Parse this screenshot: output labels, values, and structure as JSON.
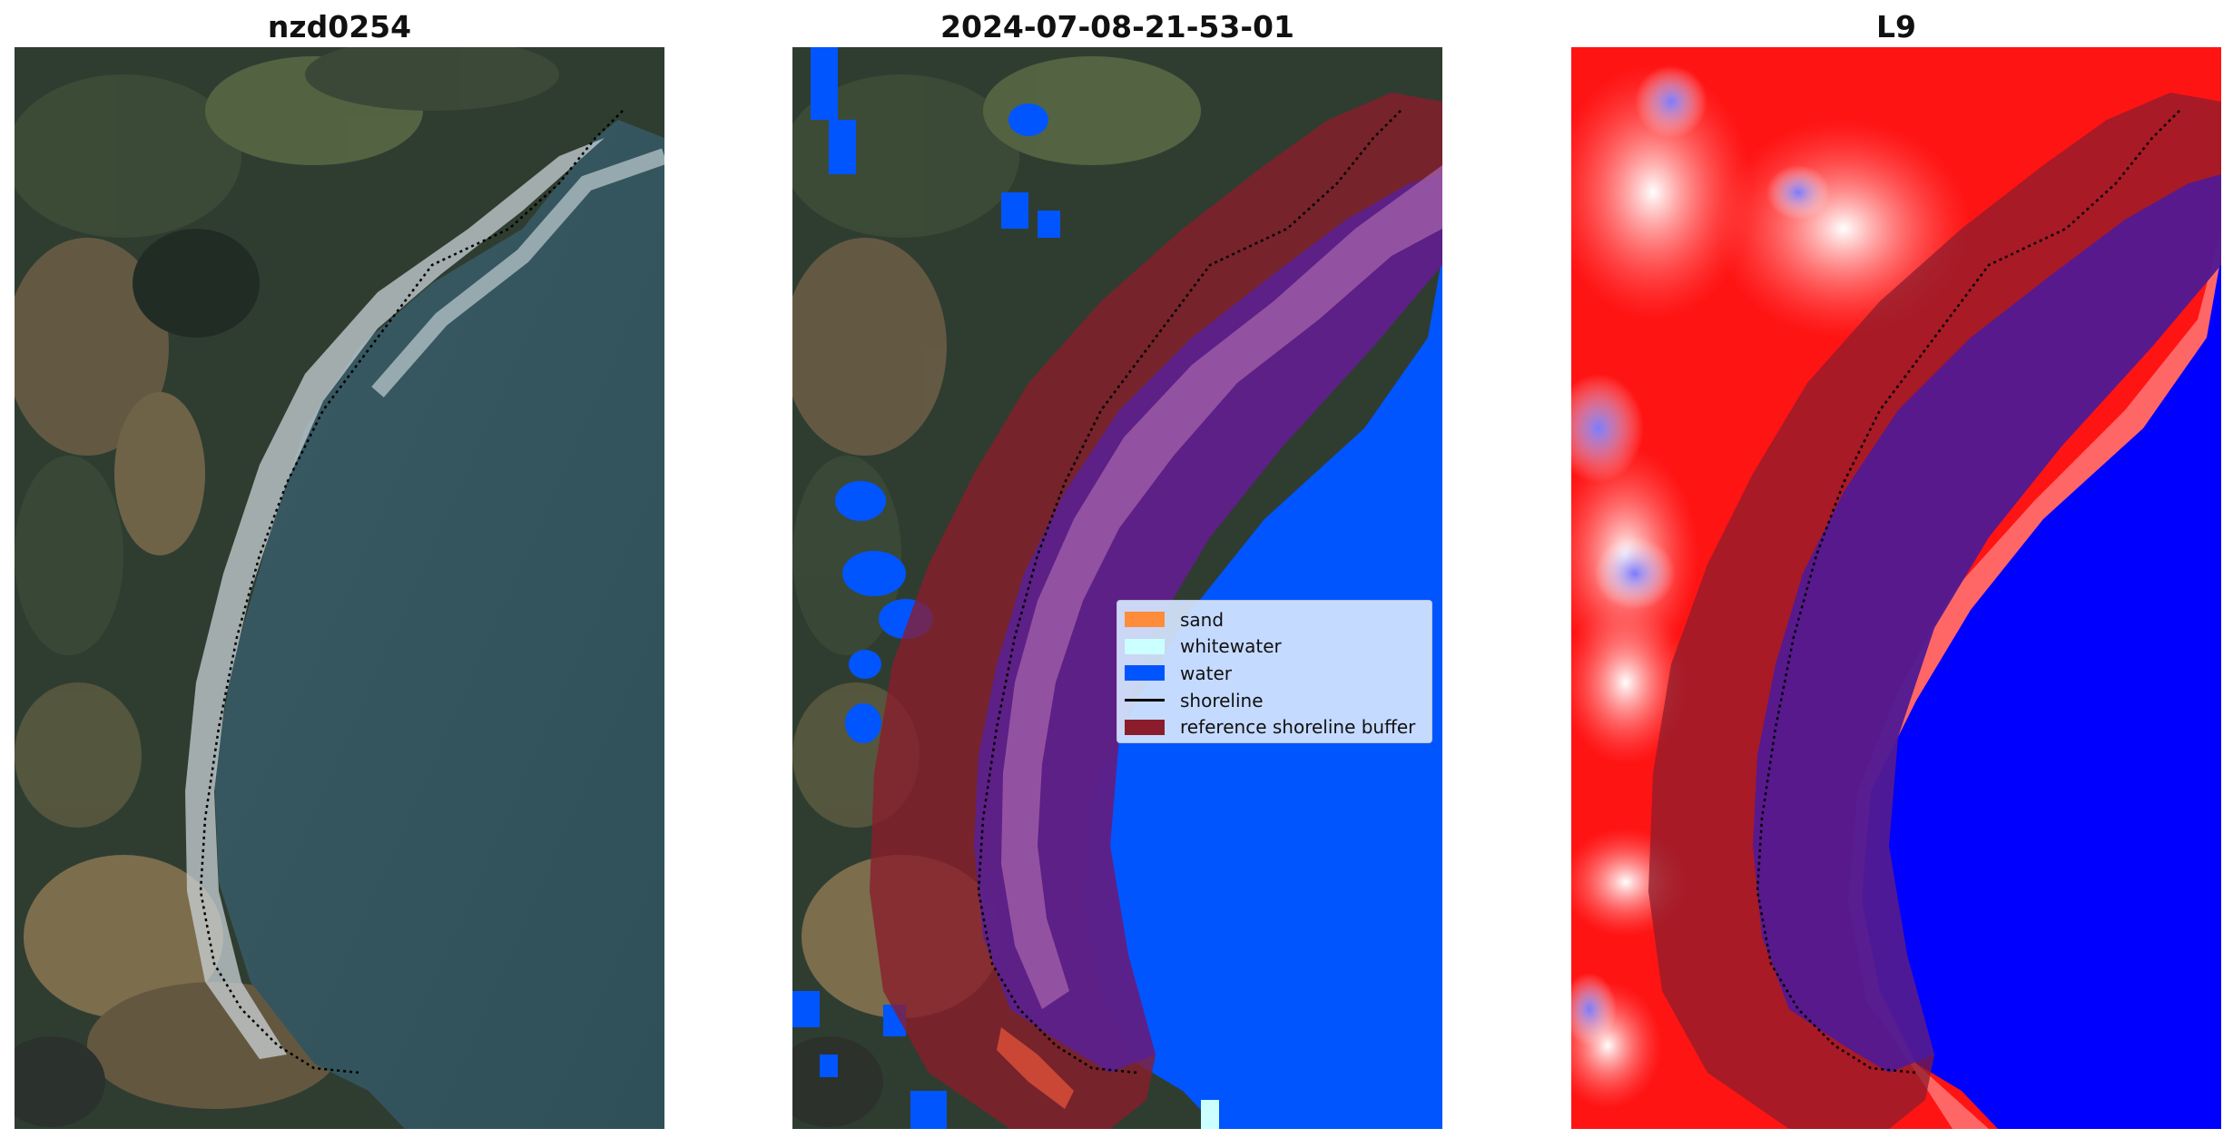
{
  "panels": [
    {
      "title": "nzd0254"
    },
    {
      "title": "2024-07-08-21-53-01"
    },
    {
      "title": "L9"
    }
  ],
  "legend": {
    "items": [
      {
        "label": "sand",
        "color": "#ff8c3a",
        "kind": "patch"
      },
      {
        "label": "whitewater",
        "color": "#ccffff",
        "kind": "patch"
      },
      {
        "label": "water",
        "color": "#0055ff",
        "kind": "patch"
      },
      {
        "label": "shoreline",
        "color": "#000000",
        "kind": "line"
      },
      {
        "label": "reference shoreline buffer",
        "color": "#8b1c2c",
        "kind": "patch"
      }
    ]
  },
  "colors": {
    "land_dark": "#2b3a2c",
    "land_brown": "#7d6b4f",
    "sea": "#34545e",
    "water_class": "#0055ff",
    "buffer": "#8b1c2c",
    "index_land": "#ff1010",
    "index_water": "#0000ff"
  }
}
